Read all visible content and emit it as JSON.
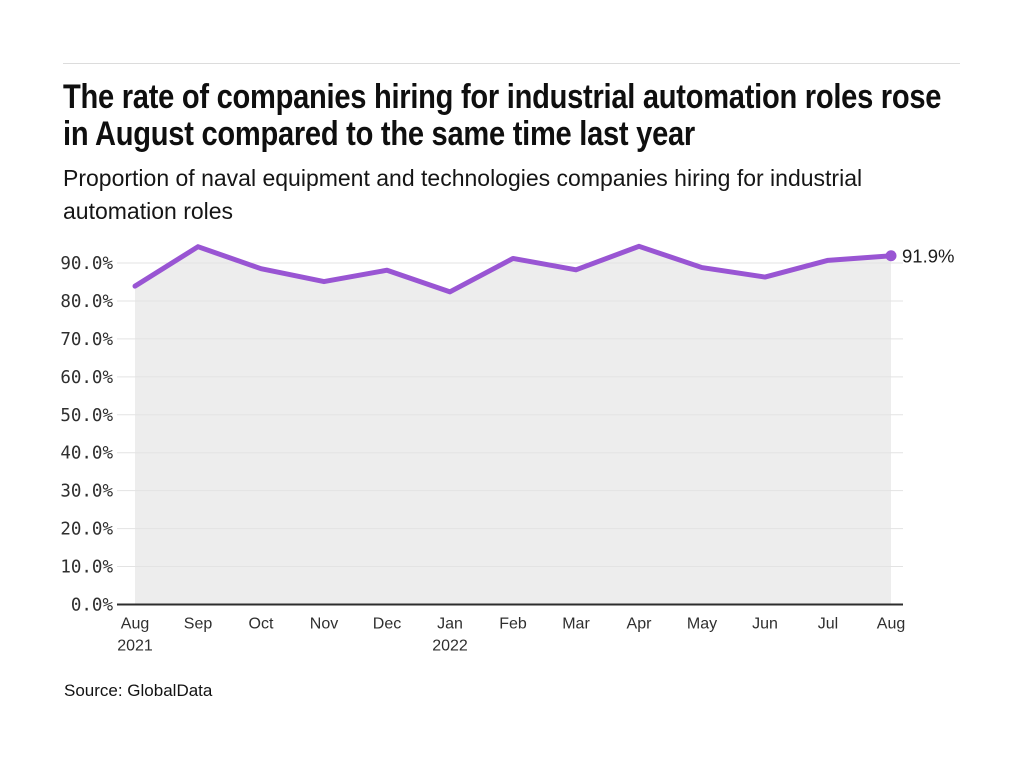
{
  "chart_data": {
    "type": "area",
    "title": "The rate of companies hiring for industrial automation roles rose in August compared to the same time last year",
    "subtitle": "Proportion of naval equipment and technologies companies hiring for industrial automation roles",
    "categories": [
      "Aug",
      "Sep",
      "Oct",
      "Nov",
      "Dec",
      "Jan",
      "Feb",
      "Mar",
      "Apr",
      "May",
      "Jun",
      "Jul",
      "Aug"
    ],
    "category_years": [
      {
        "index": 0,
        "label": "2021"
      },
      {
        "index": 5,
        "label": "2022"
      }
    ],
    "values": [
      83.9,
      94.3,
      88.5,
      85.1,
      88.1,
      82.4,
      91.2,
      88.2,
      94.4,
      88.8,
      86.3,
      90.7,
      91.9
    ],
    "unit": "%",
    "end_label": "91.9%",
    "ylim": [
      0,
      100
    ],
    "ytick_labels": [
      "0.0%",
      "10.0%",
      "20.0%",
      "30.0%",
      "40.0%",
      "50.0%",
      "60.0%",
      "70.0%",
      "80.0%",
      "90.0%"
    ],
    "grid": true,
    "legend": "none",
    "colors": {
      "line": "#9955d3",
      "marker": "#9955d3",
      "area_fill": "#ededed",
      "grid": "#e3e3e3",
      "axis": "#2d2d2d",
      "tick_text": "#2f2f2f",
      "end_label_text": "#1c1c1c"
    }
  },
  "footer": {
    "source": "Source: GlobalData"
  }
}
